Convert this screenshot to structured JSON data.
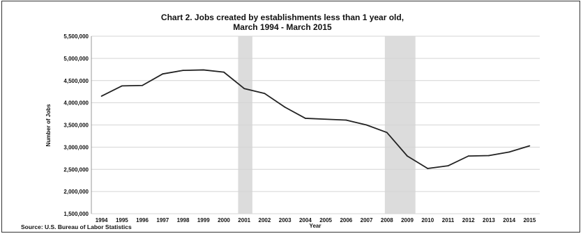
{
  "chart_data": {
    "type": "line",
    "title_line1": "Chart 2. Jobs created by establishments less than 1 year old,",
    "title_line2": "March 1994 - March 2015",
    "xlabel": "Year",
    "ylabel": "Number of Jobs",
    "source": "Source: U.S. Bureau of Labor Statistics",
    "ylim": [
      1500000,
      5500000
    ],
    "yticks": [
      1500000,
      2000000,
      2500000,
      3000000,
      3500000,
      4000000,
      4500000,
      5000000,
      5500000
    ],
    "ytick_labels": [
      "1,500,000",
      "2,000,000",
      "2,500,000",
      "3,000,000",
      "3,500,000",
      "4,000,000",
      "4,500,000",
      "5,000,000",
      "5,500,000"
    ],
    "categories": [
      "1994",
      "1995",
      "1996",
      "1997",
      "1998",
      "1999",
      "2000",
      "2001",
      "2002",
      "2003",
      "2004",
      "2005",
      "2006",
      "2007",
      "2008",
      "2009",
      "2010",
      "2011",
      "2012",
      "2013",
      "2014",
      "2015"
    ],
    "series": [
      {
        "values": [
          4150000,
          4380000,
          4390000,
          4650000,
          4730000,
          4740000,
          4690000,
          4320000,
          4210000,
          3900000,
          3650000,
          3630000,
          3610000,
          3500000,
          3330000,
          2800000,
          2520000,
          2580000,
          2800000,
          2810000,
          2890000,
          3030000
        ],
        "color": "#222222"
      }
    ],
    "shaded_periods": [
      {
        "from": "2000.7",
        "to": "2001.4"
      },
      {
        "from": "2007.9",
        "to": "2009.4"
      }
    ],
    "grid": "horizontal",
    "line_color": "#222222",
    "shade_color": "#dcdcdc",
    "grid_color": "#d4d4d4"
  }
}
